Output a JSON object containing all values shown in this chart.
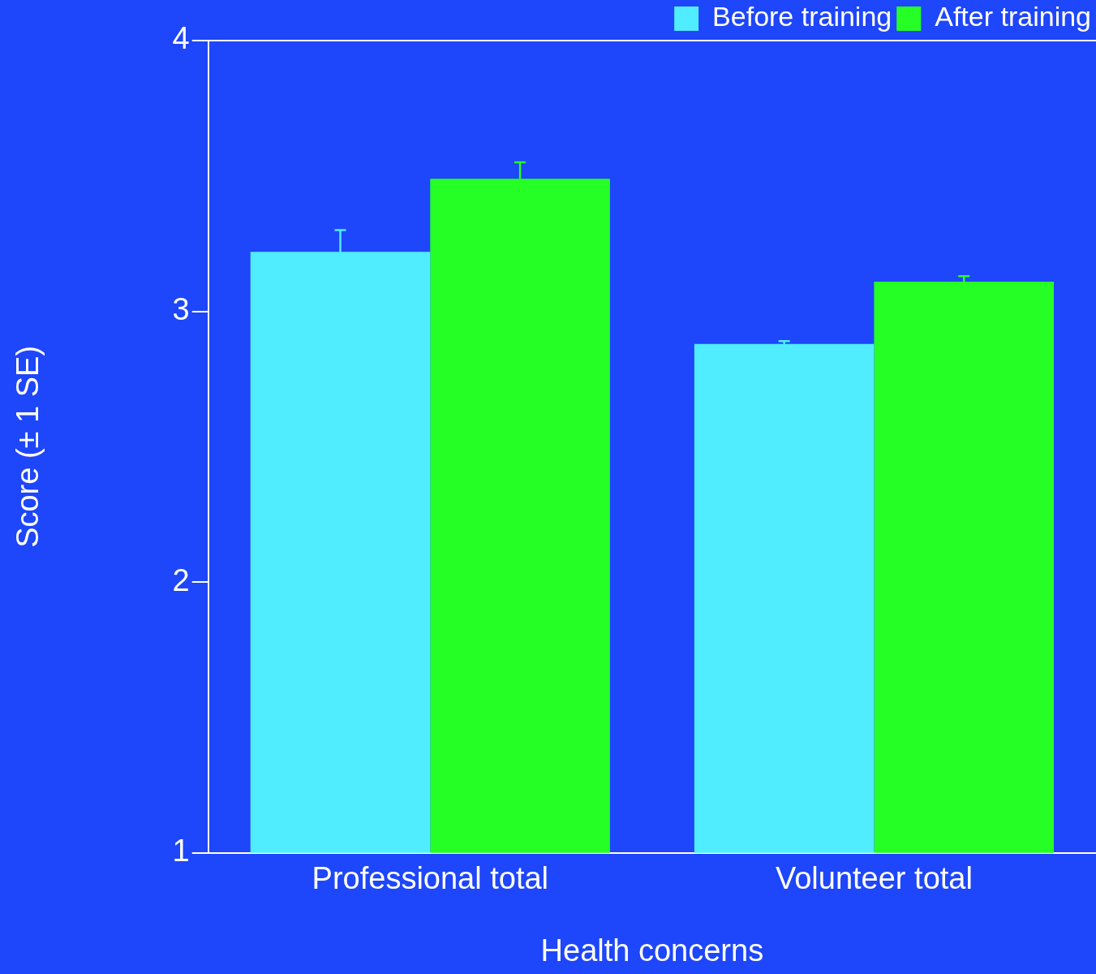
{
  "chart_data": {
    "type": "bar",
    "xlabel": "Health concerns",
    "ylabel": "Score (± 1 SE)",
    "categories": [
      "Professional total",
      "Volunteer total"
    ],
    "series": [
      {
        "name": "Before training",
        "color": "#50ecff",
        "values": [
          3.22,
          2.88
        ],
        "errors": [
          0.08,
          0.01
        ]
      },
      {
        "name": "After training",
        "color": "#25ff25",
        "values": [
          3.49,
          3.11
        ],
        "errors": [
          0.06,
          0.02
        ]
      }
    ],
    "ylim": [
      1,
      4
    ],
    "yticks": [
      1,
      2,
      3,
      4
    ],
    "grid": false,
    "legend": "top right"
  }
}
